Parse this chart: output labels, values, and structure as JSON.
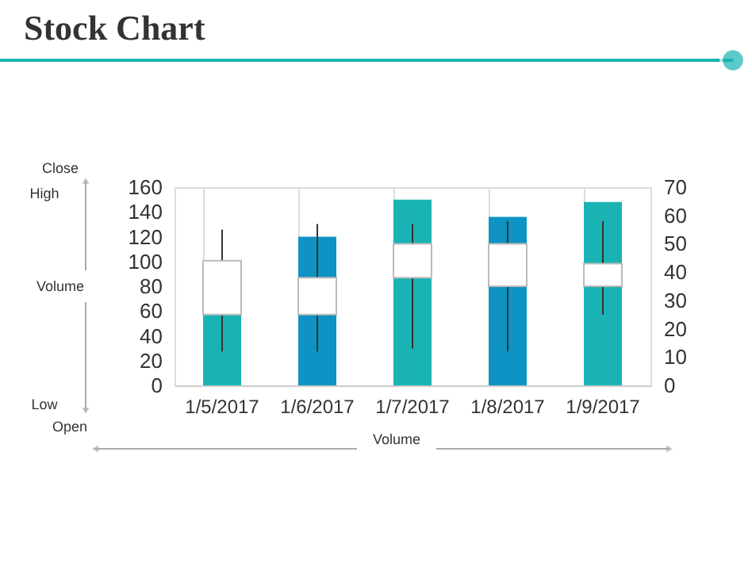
{
  "chart_data": {
    "type": "candlestick",
    "title": "Stock Chart",
    "categories": [
      "1/5/2017",
      "1/6/2017",
      "1/7/2017",
      "1/8/2017",
      "1/9/2017"
    ],
    "series": [
      {
        "type": "bar",
        "colors": [
          "#1ab3b3",
          "#0e93c4",
          "#1ab3b3",
          "#0e93c4",
          "#1ab3b3"
        ],
        "values": [
          58,
          120,
          150,
          136,
          148
        ]
      },
      {
        "type": "candlestick",
        "axis": "y2",
        "color": "#ffffff",
        "ohlc": [
          [
            25,
            55,
            12,
            44
          ],
          [
            25,
            57,
            12,
            38
          ],
          [
            38,
            57,
            13,
            50
          ],
          [
            35,
            58,
            12,
            50
          ],
          [
            35,
            58,
            25,
            43
          ]
        ]
      }
    ],
    "ylim": [
      0,
      160
    ],
    "yticks": [
      0,
      20,
      40,
      60,
      80,
      100,
      120,
      140,
      160
    ],
    "y2lim": [
      0,
      70
    ],
    "y2ticks": [
      0,
      10,
      20,
      30,
      40,
      50,
      60,
      70
    ],
    "grid": "x",
    "annotations": [
      "Close",
      "High",
      "Volume",
      "Low",
      "Open",
      "Volume"
    ]
  }
}
